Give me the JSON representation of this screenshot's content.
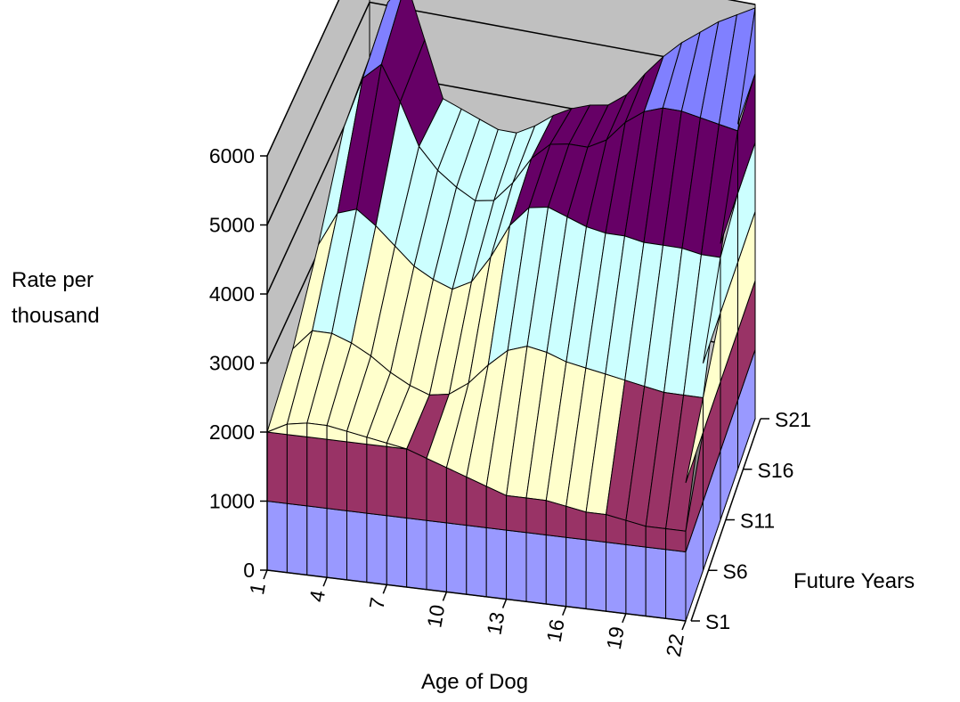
{
  "chart_data": {
    "type": "surface",
    "title": "",
    "xlabel": "Age of Dog",
    "ylabel": "Rate per thousand",
    "zlabel": "Future Years",
    "x_ticks": [
      "1",
      "4",
      "7",
      "10",
      "13",
      "16",
      "19",
      "22"
    ],
    "series_ticks": [
      "S1",
      "S6",
      "S11",
      "S16",
      "S21"
    ],
    "ylim": [
      0,
      6000
    ],
    "y_ticks": [
      0,
      1000,
      2000,
      3000,
      4000,
      5000,
      6000
    ],
    "band_breaks": [
      1000,
      2000,
      3000,
      4000,
      5000,
      6000
    ],
    "band_colors": [
      "#9999ff",
      "#993366",
      "#ffffcc",
      "#ccffff",
      "#660066",
      "#8080ff"
    ],
    "wall_color": "#c0c0c0",
    "floor_color": "#808080",
    "grid": true,
    "legend": "none",
    "x": [
      1,
      2,
      3,
      4,
      5,
      6,
      7,
      8,
      9,
      10,
      11,
      12,
      13,
      14,
      15,
      16,
      17,
      18,
      19,
      20,
      21,
      22
    ],
    "series": [
      {
        "name": "S1",
        "values": [
          2000,
          2150,
          2200,
          2200,
          2150,
          2100,
          2050,
          2000,
          1900,
          1800,
          1700,
          1600,
          1500,
          1500,
          1500,
          1450,
          1400,
          1400,
          1350,
          1300,
          1300,
          1300
        ]
      },
      {
        "name": "S6",
        "values": [
          2400,
          2700,
          2700,
          2600,
          2450,
          2250,
          2100,
          2000,
          2050,
          2250,
          2550,
          2800,
          2900,
          2850,
          2750,
          2700,
          2650,
          2600,
          2550,
          2500,
          2500,
          2500
        ]
      },
      {
        "name": "S11",
        "values": [
          3100,
          3600,
          3700,
          3500,
          3250,
          3000,
          2850,
          2750,
          2900,
          3300,
          3800,
          4100,
          4150,
          4050,
          3950,
          3900,
          3900,
          3850,
          3850,
          3850,
          3800,
          3800
        ]
      },
      {
        "name": "S16",
        "values": [
          4000,
          4750,
          5000,
          4500,
          3900,
          3600,
          3400,
          3250,
          3300,
          3600,
          4000,
          4250,
          4300,
          4300,
          4450,
          4750,
          4950,
          5050,
          5050,
          5000,
          4950,
          4900
        ]
      },
      {
        "name": "S21",
        "values": [
          4200,
          5050,
          5400,
          4600,
          3800,
          3700,
          3600,
          3500,
          3500,
          3650,
          3850,
          4000,
          4100,
          4150,
          4350,
          4700,
          5000,
          5250,
          5450,
          5650,
          5800,
          5950
        ]
      }
    ]
  }
}
